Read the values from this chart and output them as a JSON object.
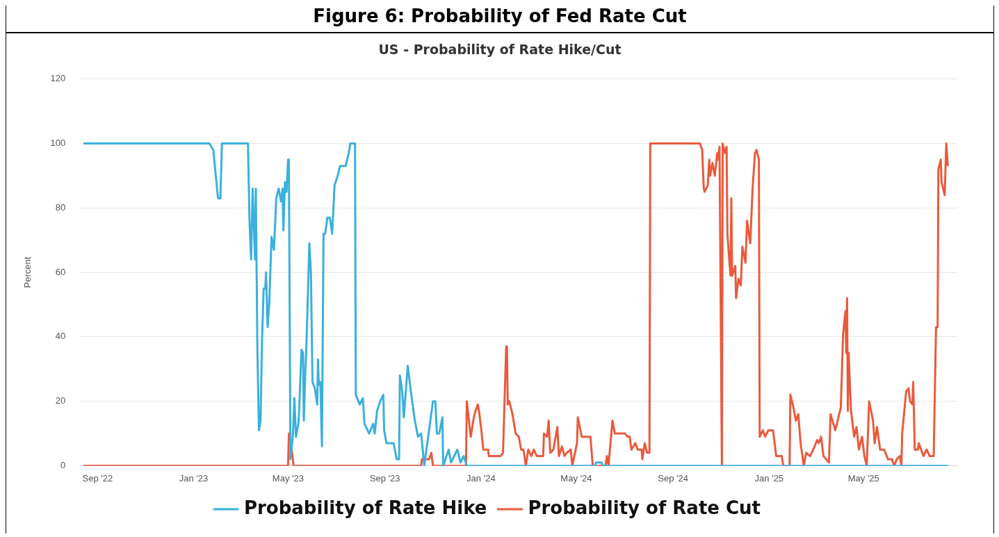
{
  "chart_data": {
    "type": "line",
    "title": "Figure 6: Probability of Fed Rate Cut",
    "subtitle": "US - Probability of Rate Hike/Cut",
    "ylabel": "Percent",
    "xlim": [
      "2022-08-09",
      "2025-08-28"
    ],
    "xticks": [
      {
        "value": "2022-09-01",
        "label": "Sep '22"
      },
      {
        "value": "2023-01-01",
        "label": "Jan '23"
      },
      {
        "value": "2023-05-01",
        "label": "May '23"
      },
      {
        "value": "2023-09-01",
        "label": "Sep '23"
      },
      {
        "value": "2024-01-01",
        "label": "Jan '24"
      },
      {
        "value": "2024-05-01",
        "label": "May '24"
      },
      {
        "value": "2024-09-01",
        "label": "Sep '24"
      },
      {
        "value": "2025-01-01",
        "label": "Jan '25"
      },
      {
        "value": "2025-05-01",
        "label": "May '25"
      }
    ],
    "ylim": [
      0,
      120
    ],
    "yticks": [
      0,
      20,
      40,
      60,
      80,
      100,
      120
    ],
    "grid": "y",
    "legend": "bottom",
    "marker": "none",
    "line_style": "solid",
    "series": [
      {
        "name": "Probability of Rate Hike",
        "color": "#3ab0dc",
        "x": [
          "2022-08-14",
          "2023-01-21",
          "2023-01-26",
          "2023-02-01",
          "2023-02-04",
          "2023-02-06",
          "2023-03-11",
          "2023-03-13",
          "2023-03-15",
          "2023-03-17",
          "2023-03-20",
          "2023-03-21",
          "2023-03-23",
          "2023-03-25",
          "2023-03-27",
          "2023-03-29",
          "2023-03-31",
          "2023-04-02",
          "2023-04-03",
          "2023-04-05",
          "2023-04-07",
          "2023-04-10",
          "2023-04-13",
          "2023-04-16",
          "2023-04-19",
          "2023-04-22",
          "2023-04-24",
          "2023-04-25",
          "2023-04-27",
          "2023-04-29",
          "2023-05-01",
          "2023-05-02",
          "2023-05-04",
          "2023-05-07",
          "2023-05-09",
          "2023-05-11",
          "2023-05-14",
          "2023-05-15",
          "2023-05-18",
          "2023-05-20",
          "2023-05-21",
          "2023-05-23",
          "2023-05-24",
          "2023-05-28",
          "2023-05-30",
          "2023-06-01",
          "2023-06-04",
          "2023-06-07",
          "2023-06-08",
          "2023-06-09",
          "2023-06-11",
          "2023-06-13",
          "2023-06-15",
          "2023-06-17",
          "2023-06-20",
          "2023-06-23",
          "2023-06-26",
          "2023-06-29",
          "2023-07-03",
          "2023-07-06",
          "2023-07-13",
          "2023-07-17",
          "2023-07-19",
          "2023-07-25",
          "2023-07-26",
          "2023-07-31",
          "2023-08-04",
          "2023-08-06",
          "2023-08-12",
          "2023-08-17",
          "2023-08-19",
          "2023-08-22",
          "2023-08-26",
          "2023-08-30",
          "2023-08-31",
          "2023-09-03",
          "2023-09-12",
          "2023-09-16",
          "2023-09-19",
          "2023-09-20",
          "2023-09-23",
          "2023-09-25",
          "2023-09-30",
          "2023-10-04",
          "2023-10-09",
          "2023-10-13",
          "2023-10-17",
          "2023-10-21",
          "2023-11-01",
          "2023-11-04",
          "2023-11-06",
          "2023-11-09",
          "2023-11-13",
          "2023-11-14",
          "2023-11-21",
          "2023-11-24",
          "2023-12-02",
          "2023-12-06",
          "2023-12-10",
          "2023-12-14",
          "2024-05-25",
          "2024-05-26",
          "2024-06-02",
          "2024-06-04",
          "2025-08-16"
        ],
        "values": [
          100,
          100,
          98,
          83,
          83,
          100,
          100,
          76,
          64,
          86,
          64,
          86,
          36,
          11,
          14,
          40,
          55,
          55,
          60,
          43,
          50,
          71,
          67,
          83,
          86,
          82,
          86,
          73,
          88,
          85,
          95,
          95,
          2,
          9,
          21,
          9,
          13,
          17,
          36,
          35,
          14,
          30,
          35,
          69,
          60,
          26,
          24,
          19,
          33,
          25,
          26,
          6,
          72,
          72,
          77,
          77,
          72,
          87,
          90,
          93,
          93,
          97,
          100,
          100,
          22,
          19,
          21,
          13,
          10,
          13,
          10,
          17,
          20,
          22,
          11,
          7,
          7,
          2,
          2,
          28,
          23,
          15,
          31,
          23,
          14,
          9,
          10,
          0,
          20,
          20,
          10,
          10,
          15,
          0,
          5,
          1,
          5,
          1,
          3,
          0,
          0,
          1,
          1,
          0,
          0
        ]
      },
      {
        "name": "Probability of Rate Cut",
        "color": "#e95a3c",
        "x": [
          "2022-08-14",
          "2023-05-01",
          "2023-05-02",
          "2023-05-03",
          "2023-05-08",
          "2023-10-17",
          "2023-10-18",
          "2023-10-27",
          "2023-10-30",
          "2023-11-01",
          "2023-12-13",
          "2023-12-14",
          "2023-12-19",
          "2023-12-23",
          "2023-12-25",
          "2023-12-28",
          "2023-12-30",
          "2024-01-01",
          "2024-01-04",
          "2024-01-10",
          "2024-01-11",
          "2024-01-23",
          "2024-01-26",
          "2024-01-29",
          "2024-02-02",
          "2024-02-03",
          "2024-02-04",
          "2024-02-06",
          "2024-02-10",
          "2024-02-14",
          "2024-02-18",
          "2024-02-21",
          "2024-02-24",
          "2024-02-27",
          "2024-03-01",
          "2024-03-05",
          "2024-03-08",
          "2024-03-12",
          "2024-03-20",
          "2024-03-21",
          "2024-03-25",
          "2024-03-27",
          "2024-03-29",
          "2024-04-02",
          "2024-04-07",
          "2024-04-09",
          "2024-04-13",
          "2024-04-16",
          "2024-04-19",
          "2024-04-24",
          "2024-04-26",
          "2024-05-02",
          "2024-05-03",
          "2024-05-08",
          "2024-05-19",
          "2024-05-22",
          "2024-06-07",
          "2024-06-09",
          "2024-06-11",
          "2024-06-16",
          "2024-06-19",
          "2024-06-22",
          "2024-07-02",
          "2024-07-05",
          "2024-07-08",
          "2024-07-10",
          "2024-07-15",
          "2024-07-18",
          "2024-07-23",
          "2024-07-24",
          "2024-07-27",
          "2024-07-30",
          "2024-08-02",
          "2024-08-03",
          "2024-10-05",
          "2024-10-08",
          "2024-10-10",
          "2024-10-11",
          "2024-10-15",
          "2024-10-17",
          "2024-10-18",
          "2024-10-21",
          "2024-10-24",
          "2024-10-27",
          "2024-10-28",
          "2024-10-30",
          "2024-11-02",
          "2024-11-03",
          "2024-11-06",
          "2024-11-08",
          "2024-11-09",
          "2024-11-11",
          "2024-11-13",
          "2024-11-14",
          "2024-11-15",
          "2024-11-19",
          "2024-11-20",
          "2024-11-23",
          "2024-11-26",
          "2024-11-28",
          "2024-12-02",
          "2024-12-04",
          "2024-12-08",
          "2024-12-11",
          "2024-12-14",
          "2024-12-16",
          "2024-12-19",
          "2024-12-20",
          "2024-12-24",
          "2024-12-27",
          "2024-12-31",
          "2025-01-06",
          "2025-01-09",
          "2025-01-10",
          "2025-01-17",
          "2025-01-19",
          "2025-01-27",
          "2025-01-28",
          "2025-02-01",
          "2025-02-04",
          "2025-02-07",
          "2025-02-10",
          "2025-02-14",
          "2025-02-17",
          "2025-02-22",
          "2025-02-26",
          "2025-03-03",
          "2025-03-05",
          "2025-03-08",
          "2025-03-11",
          "2025-03-18",
          "2025-03-20",
          "2025-03-26",
          "2025-03-29",
          "2025-04-02",
          "2025-04-05",
          "2025-04-08",
          "2025-04-09",
          "2025-04-10",
          "2025-04-11",
          "2025-04-12",
          "2025-04-15",
          "2025-04-19",
          "2025-04-22",
          "2025-04-25",
          "2025-04-29",
          "2025-05-02",
          "2025-05-05",
          "2025-05-08",
          "2025-05-13",
          "2025-05-15",
          "2025-05-18",
          "2025-05-22",
          "2025-05-27",
          "2025-06-01",
          "2025-06-06",
          "2025-06-09",
          "2025-06-12",
          "2025-06-16",
          "2025-06-18",
          "2025-06-19",
          "2025-06-24",
          "2025-06-27",
          "2025-06-29",
          "2025-07-02",
          "2025-07-03",
          "2025-07-05",
          "2025-07-09",
          "2025-07-10",
          "2025-07-16",
          "2025-07-20",
          "2025-07-24",
          "2025-07-29",
          "2025-08-01",
          "2025-08-03",
          "2025-08-04",
          "2025-08-07",
          "2025-08-08",
          "2025-08-12",
          "2025-08-14",
          "2025-08-16"
        ],
        "values": [
          0,
          0,
          10,
          10,
          0,
          0,
          2,
          2,
          4,
          0,
          0,
          20,
          9,
          15,
          17,
          19,
          16,
          12,
          5,
          5,
          3,
          3,
          3,
          4,
          37,
          37,
          19,
          20,
          16,
          10,
          9,
          5,
          5,
          0,
          5,
          3,
          5,
          3,
          3,
          10,
          9,
          14,
          4,
          5,
          12,
          3,
          6,
          3,
          4,
          5,
          0,
          7,
          15,
          9,
          9,
          0,
          0,
          3,
          0,
          14,
          10,
          10,
          10,
          9,
          9,
          5,
          7,
          5,
          5,
          2,
          7,
          4,
          4,
          100,
          100,
          98,
          86,
          85,
          87,
          95,
          90,
          94,
          90,
          97,
          95,
          99,
          0,
          100,
          97,
          99,
          72,
          65,
          59,
          83,
          59,
          62,
          52,
          58,
          56,
          68,
          63,
          76,
          69,
          86,
          97,
          98,
          95,
          9,
          11,
          9,
          11,
          11,
          5,
          3,
          3,
          0,
          0,
          22,
          18,
          14,
          16,
          7,
          0,
          4,
          3,
          5,
          8,
          7,
          9,
          3,
          1,
          16,
          11,
          14,
          18,
          41,
          48,
          35,
          52,
          17,
          35,
          17,
          9,
          12,
          5,
          9,
          3,
          0,
          20,
          14,
          7,
          12,
          5,
          5,
          2,
          2,
          0,
          2,
          3,
          0,
          10,
          23,
          24,
          20,
          19,
          26,
          5,
          5,
          7,
          3,
          5,
          3,
          3,
          43,
          43,
          92,
          95,
          88,
          84,
          100,
          93
        ]
      }
    ]
  }
}
